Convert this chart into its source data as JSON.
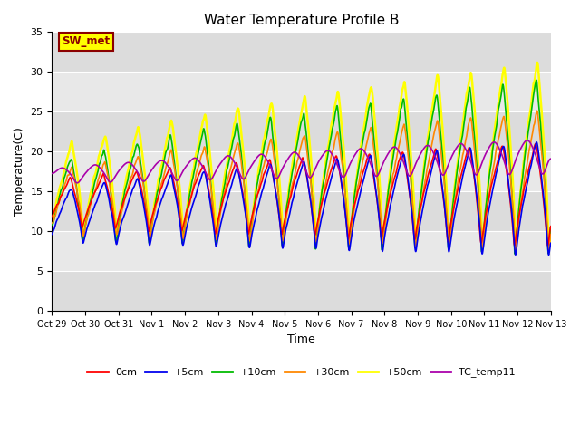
{
  "title": "Water Temperature Profile B",
  "xlabel": "Time",
  "ylabel": "Temperature(C)",
  "ylim": [
    0,
    35
  ],
  "annotation": "SW_met",
  "annotation_box_color": "#FFFF00",
  "annotation_text_color": "#8B0000",
  "annotation_border_color": "#8B0000",
  "background_plot": "#E8E8E8",
  "background_band_light": "#EBEBEB",
  "background_band_dark": "#D8D8D8",
  "grid_color": "#FFFFFF",
  "x_tick_labels": [
    "Oct 29",
    "Oct 30",
    "Oct 31",
    "Nov 1",
    "Nov 2",
    "Nov 3",
    "Nov 4",
    "Nov 5",
    "Nov 6",
    "Nov 7",
    "Nov 8",
    "Nov 9",
    "Nov 10",
    "Nov 11",
    "Nov 12",
    "Nov 13"
  ],
  "series": {
    "0cm": {
      "color": "#FF0000",
      "lw": 1.2
    },
    "+5cm": {
      "color": "#0000EE",
      "lw": 1.2
    },
    "+10cm": {
      "color": "#00BB00",
      "lw": 1.2
    },
    "+30cm": {
      "color": "#FF8800",
      "lw": 1.2
    },
    "+50cm": {
      "color": "#FFFF00",
      "lw": 1.8
    },
    "TC_temp11": {
      "color": "#AA00AA",
      "lw": 1.2
    }
  }
}
